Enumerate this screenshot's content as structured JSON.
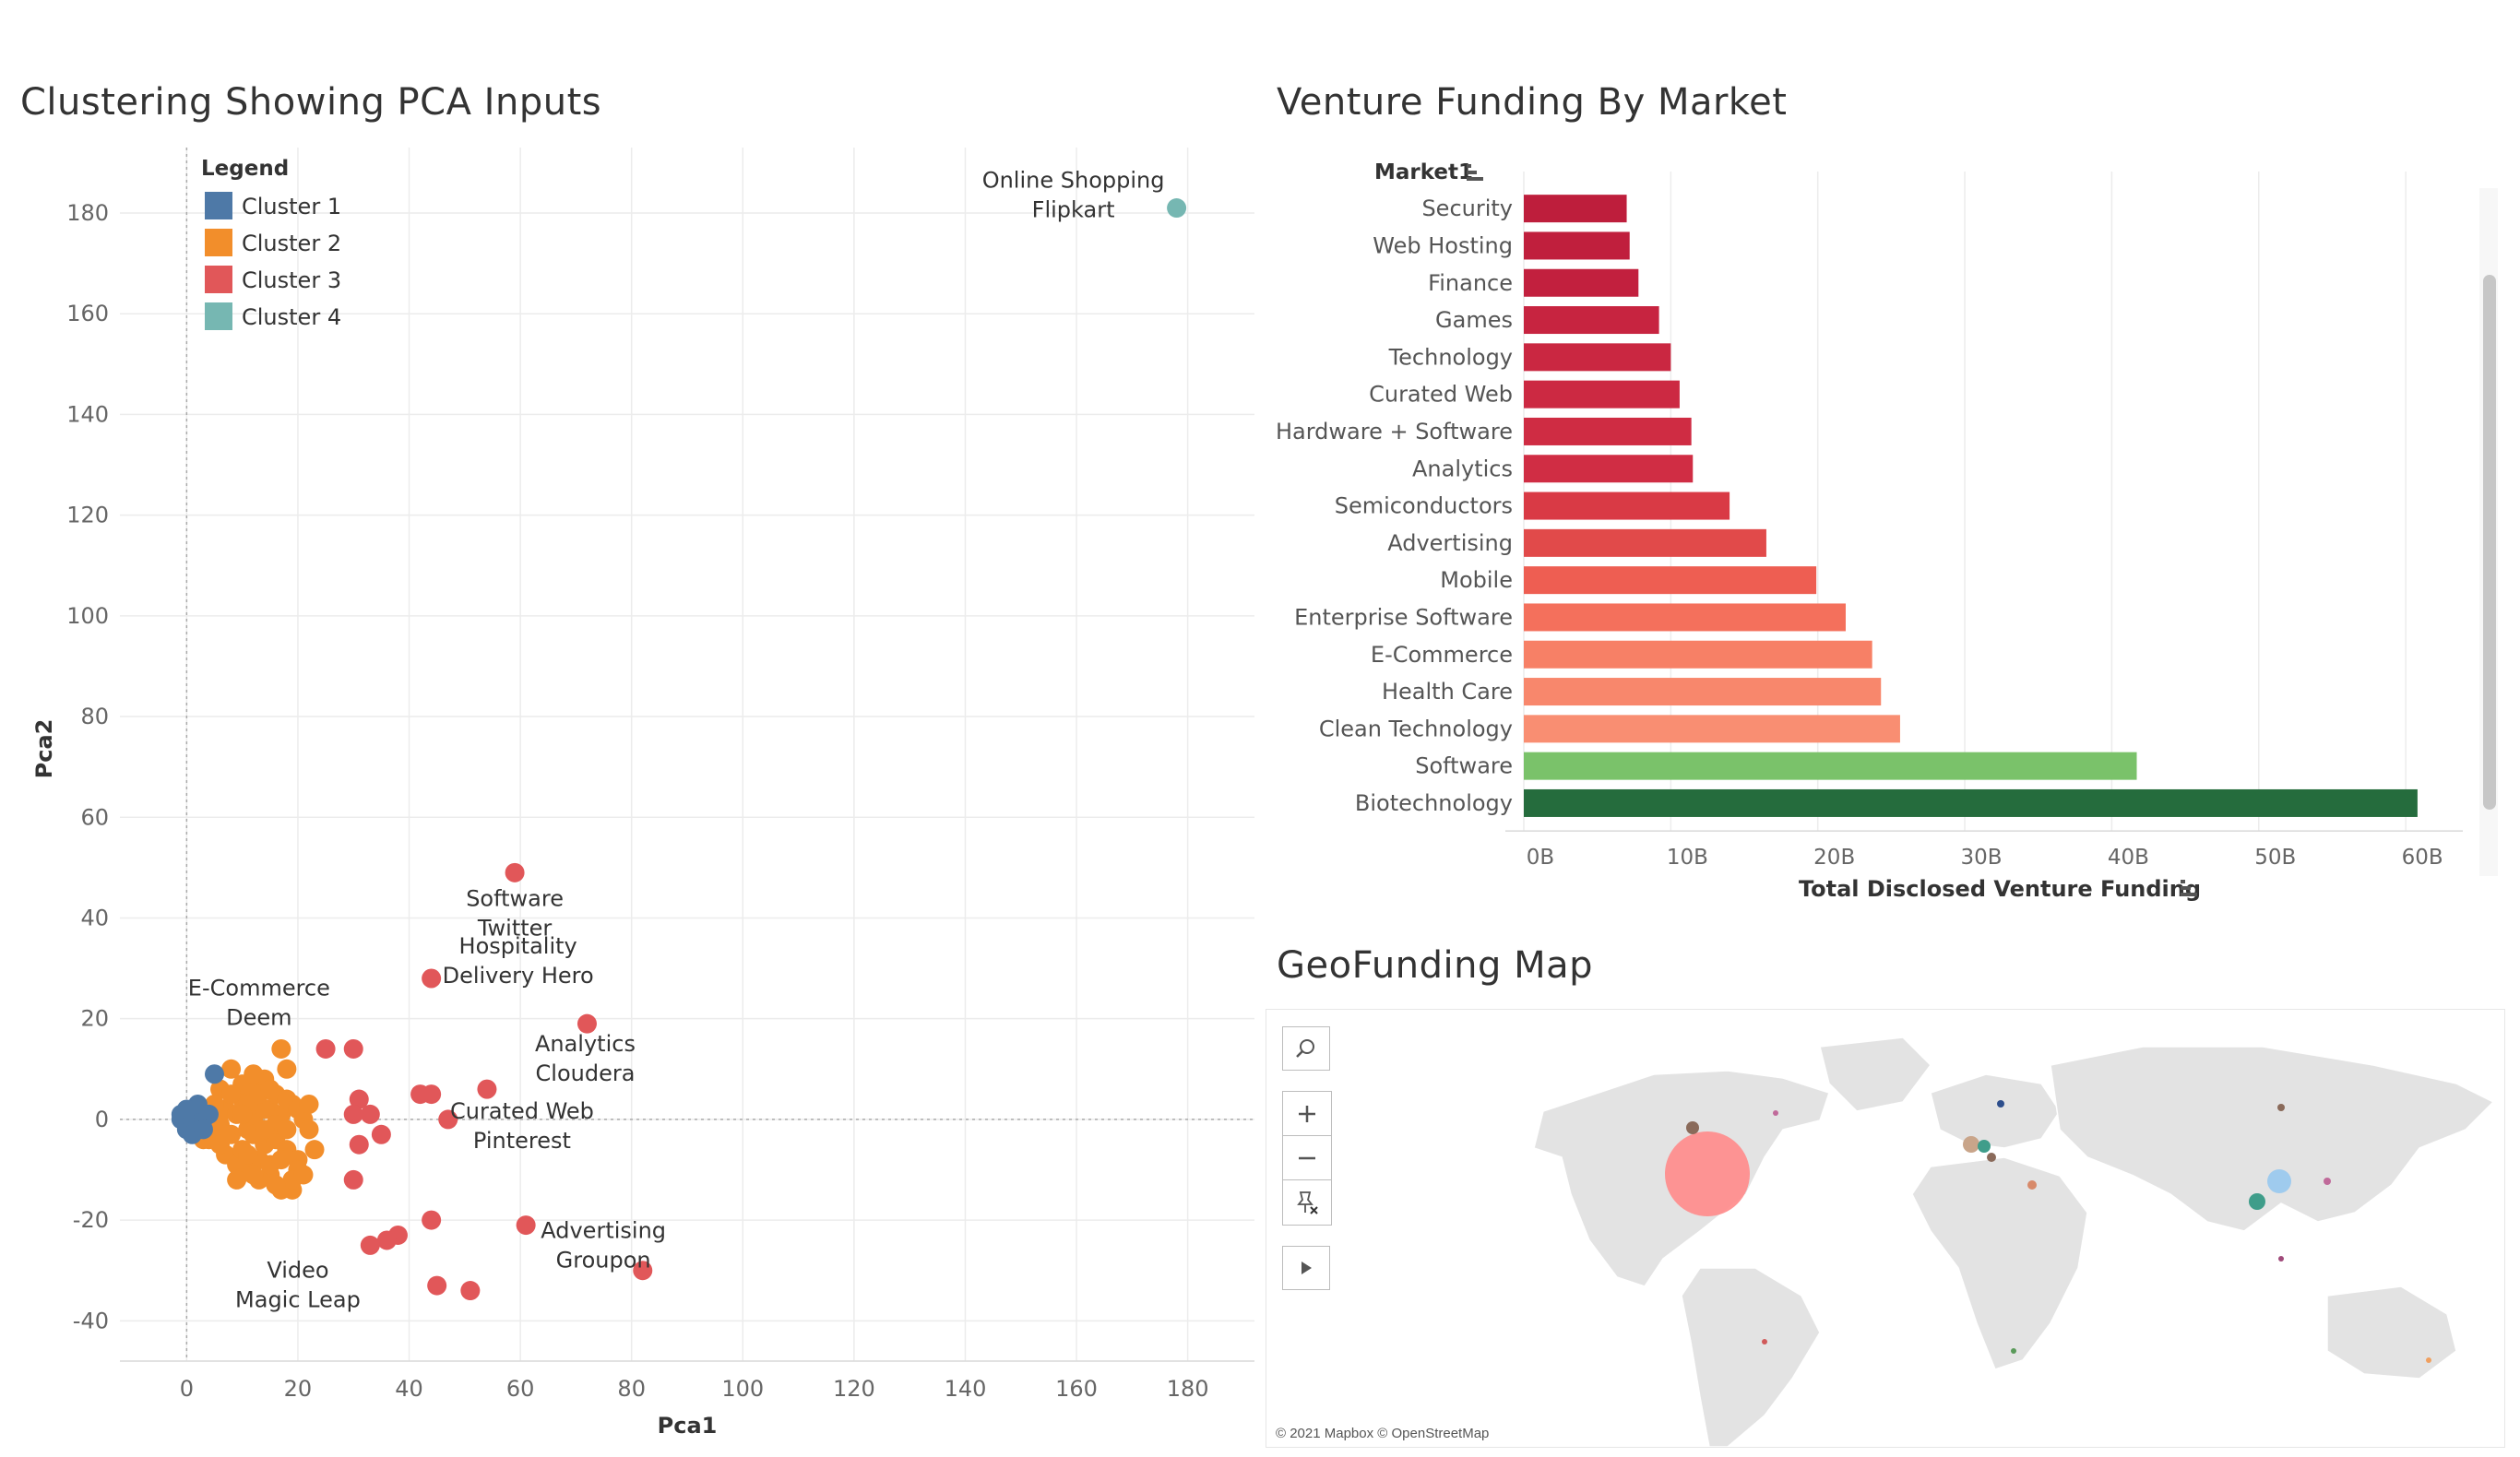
{
  "scatter_panel": {
    "title": "Clustering Showing PCA Inputs"
  },
  "bar_panel": {
    "title": "Venture Funding By Market"
  },
  "map_panel": {
    "title": "GeoFunding Map",
    "attribution": "© 2021 Mapbox © OpenStreetMap",
    "controls": [
      "search-icon",
      "zoom-in-icon",
      "zoom-out-icon",
      "pin-icon",
      "play-icon"
    ]
  },
  "chart_data": [
    {
      "type": "scatter",
      "title": "Clustering Showing PCA Inputs",
      "xlabel": "Pca1",
      "ylabel": "Pca2",
      "xlim": [
        -12,
        192
      ],
      "ylim": [
        -48,
        193
      ],
      "xticks": [
        0,
        20,
        40,
        60,
        80,
        100,
        120,
        140,
        160,
        180
      ],
      "yticks": [
        -40,
        -20,
        0,
        20,
        40,
        60,
        80,
        100,
        120,
        140,
        160,
        180
      ],
      "grid": true,
      "legend": {
        "title": "Legend",
        "position": "top-left",
        "entries": [
          {
            "name": "Cluster 1",
            "color": "#4e79a7"
          },
          {
            "name": "Cluster 2",
            "color": "#f28e2b"
          },
          {
            "name": "Cluster 3",
            "color": "#e15759"
          },
          {
            "name": "Cluster 4",
            "color": "#76b7b2"
          }
        ]
      },
      "series": [
        {
          "name": "Cluster 1",
          "color": "#4e79a7",
          "points": [
            [
              0,
              0
            ],
            [
              1,
              1
            ],
            [
              -1,
              0
            ],
            [
              2,
              -1
            ],
            [
              0,
              -2
            ],
            [
              1,
              2
            ],
            [
              3,
              0
            ],
            [
              -1,
              1
            ],
            [
              1,
              -3
            ],
            [
              2,
              3
            ],
            [
              4,
              1
            ],
            [
              0,
              2
            ],
            [
              3,
              -2
            ],
            [
              5,
              9
            ]
          ]
        },
        {
          "name": "Cluster 2",
          "color": "#f28e2b",
          "points": [
            [
              5,
              0
            ],
            [
              6,
              -1
            ],
            [
              7,
              2
            ],
            [
              8,
              -3
            ],
            [
              9,
              1
            ],
            [
              10,
              4
            ],
            [
              11,
              -2
            ],
            [
              12,
              0
            ],
            [
              13,
              3
            ],
            [
              14,
              -5
            ],
            [
              15,
              2
            ],
            [
              16,
              -4
            ],
            [
              17,
              1
            ],
            [
              18,
              -6
            ],
            [
              19,
              3
            ],
            [
              20,
              -8
            ],
            [
              21,
              0
            ],
            [
              6,
              6
            ],
            [
              7,
              -7
            ],
            [
              8,
              10
            ],
            [
              9,
              -9
            ],
            [
              10,
              7
            ],
            [
              11,
              -10
            ],
            [
              12,
              6
            ],
            [
              13,
              -12
            ],
            [
              14,
              8
            ],
            [
              15,
              -11
            ],
            [
              16,
              5
            ],
            [
              17,
              -14
            ],
            [
              18,
              4
            ],
            [
              19,
              -14
            ],
            [
              20,
              -10
            ],
            [
              22,
              -2
            ],
            [
              23,
              -6
            ],
            [
              4,
              -4
            ],
            [
              5,
              3
            ],
            [
              8,
              5
            ],
            [
              10,
              -6
            ],
            [
              12,
              -3
            ],
            [
              14,
              2
            ],
            [
              16,
              -1
            ],
            [
              18,
              -2
            ],
            [
              20,
              2
            ],
            [
              9,
              -12
            ],
            [
              11,
              3
            ],
            [
              13,
              -8
            ],
            [
              15,
              -9
            ],
            [
              17,
              -8
            ],
            [
              19,
              -12
            ],
            [
              22,
              3
            ],
            [
              12,
              9
            ],
            [
              17,
              14
            ],
            [
              18,
              10
            ],
            [
              21,
              -11
            ],
            [
              7,
              -3
            ],
            [
              13,
              5
            ],
            [
              15,
              6
            ],
            [
              11,
              -7
            ],
            [
              16,
              -13
            ],
            [
              6,
              -5
            ],
            [
              4,
              -2
            ],
            [
              3,
              -4
            ],
            [
              10,
              1
            ],
            [
              12,
              -11
            ],
            [
              14,
              -2
            ]
          ]
        },
        {
          "name": "Cluster 3",
          "color": "#e15759",
          "points": [
            [
              59,
              49
            ],
            [
              44,
              28
            ],
            [
              72,
              19
            ],
            [
              25,
              14
            ],
            [
              30,
              14
            ],
            [
              31,
              4
            ],
            [
              33,
              1
            ],
            [
              30,
              1
            ],
            [
              35,
              -3
            ],
            [
              31,
              -5
            ],
            [
              42,
              5
            ],
            [
              44,
              5
            ],
            [
              54,
              6
            ],
            [
              47,
              0
            ],
            [
              30,
              -12
            ],
            [
              44,
              -20
            ],
            [
              38,
              -23
            ],
            [
              36,
              -24
            ],
            [
              33,
              -25
            ],
            [
              61,
              -21
            ],
            [
              82,
              -30
            ],
            [
              45,
              -33
            ],
            [
              51,
              -34
            ]
          ]
        },
        {
          "name": "Cluster 4",
          "color": "#76b7b2",
          "points": [
            [
              178,
              181
            ]
          ]
        }
      ],
      "annotations": [
        {
          "lines": [
            "Online Shopping",
            "Flipkart"
          ],
          "x": 178,
          "y": 181
        },
        {
          "lines": [
            "Software",
            "Twitter"
          ],
          "x": 59,
          "y": 49
        },
        {
          "lines": [
            "Hospitality",
            "Delivery Hero"
          ],
          "x": 44,
          "y": 28
        },
        {
          "lines": [
            "E-Commerce",
            "Deem"
          ],
          "x": 17,
          "y": 14
        },
        {
          "lines": [
            "Analytics",
            "Cloudera"
          ],
          "x": 72,
          "y": 19
        },
        {
          "lines": [
            "Curated Web",
            "Pinterest"
          ],
          "x": 54,
          "y": 6
        },
        {
          "lines": [
            "Advertising",
            "Groupon"
          ],
          "x": 61,
          "y": -21
        },
        {
          "lines": [
            "Video",
            "Magic Leap"
          ],
          "x": 20,
          "y": -8
        }
      ]
    },
    {
      "type": "bar",
      "orientation": "horizontal",
      "title": "Venture Funding By Market",
      "category_header": "Market1",
      "xlabel": "Total Disclosed Venture Funding",
      "xlim": [
        0,
        62
      ],
      "xticks": [
        0,
        10,
        20,
        30,
        40,
        50,
        60
      ],
      "xtick_labels": [
        "0B",
        "10B",
        "20B",
        "30B",
        "40B",
        "50B",
        "60B"
      ],
      "unit": "B",
      "grid": true,
      "categories": [
        "Security",
        "Web Hosting",
        "Finance",
        "Games",
        "Technology",
        "Curated Web",
        "Hardware + Software",
        "Analytics",
        "Semiconductors",
        "Advertising",
        "Mobile",
        "Enterprise Software",
        "E-Commerce",
        "Health Care",
        "Clean Technology",
        "Software",
        "Biotechnology"
      ],
      "values": [
        7.0,
        7.2,
        7.8,
        9.2,
        10.0,
        10.6,
        11.4,
        11.5,
        14.0,
        16.5,
        19.9,
        21.9,
        23.7,
        24.3,
        25.6,
        41.7,
        60.8
      ],
      "colors": [
        "#be1e3c",
        "#c01f3d",
        "#c2203e",
        "#c72440",
        "#ca2741",
        "#cc2942",
        "#cf2c43",
        "#d02d44",
        "#d93a45",
        "#e14a4a",
        "#ee5e52",
        "#f4705c",
        "#f78066",
        "#f8876c",
        "#f98e72",
        "#7ac26a",
        "#256c3d"
      ]
    },
    {
      "type": "map",
      "title": "GeoFunding Map",
      "markers": [
        {
          "region": "San Francisco Bay Area",
          "size": "largest",
          "color": "#ff8a8a"
        },
        {
          "region": "China",
          "size": "medium",
          "color": "#9fcbee"
        },
        {
          "region": "India",
          "size": "small",
          "color": "#3f9d8a"
        },
        {
          "region": "United Kingdom",
          "size": "small",
          "color": "#c9a58a"
        }
      ]
    }
  ]
}
